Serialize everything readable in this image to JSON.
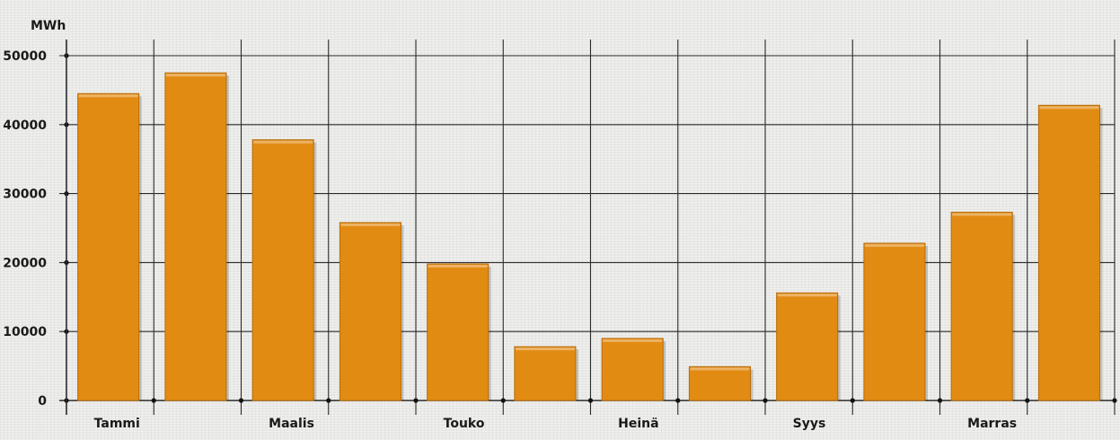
{
  "chart_data": {
    "type": "bar",
    "ylabel": "MWh",
    "ylim": [
      0,
      50000
    ],
    "yticks": [
      "0",
      "10000",
      "20000",
      "30000",
      "40000",
      "50000"
    ],
    "categories": [
      "Tammi",
      "",
      "Maalis",
      "",
      "Touko",
      "",
      "Heinä",
      "",
      "Syys",
      "",
      "Marras",
      ""
    ],
    "values": [
      44500,
      47500,
      37800,
      25800,
      19800,
      7800,
      9000,
      4900,
      15600,
      22800,
      27300,
      42800
    ],
    "grid": true,
    "colors": {
      "bar": "#e28b12",
      "bar_shadow": "#b86b06",
      "grid": "#2a2a2a"
    }
  }
}
